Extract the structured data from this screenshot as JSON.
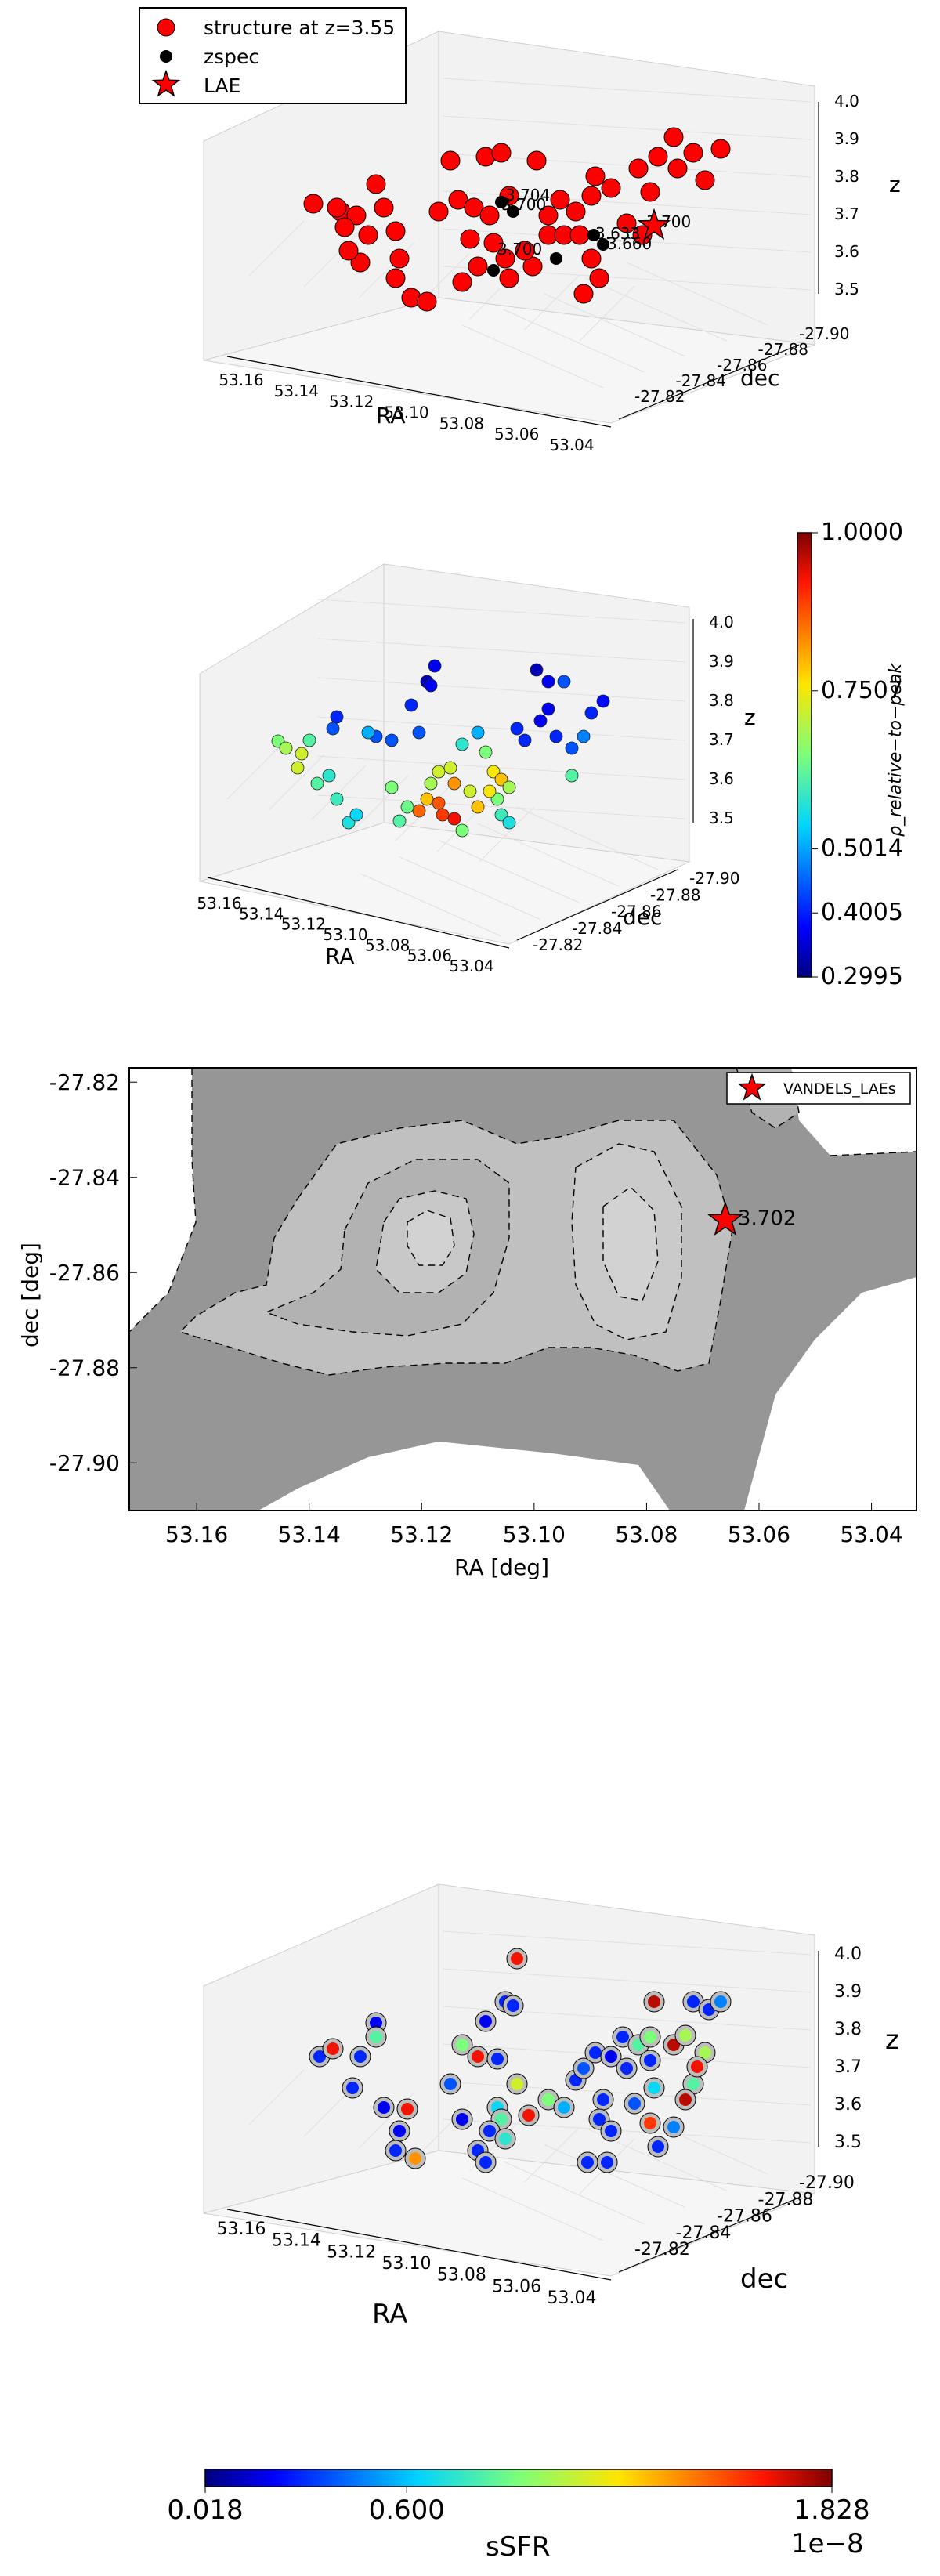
{
  "colors": {
    "red": "#ff0000",
    "black": "#000000",
    "pane_fill": "#f2f2f2",
    "contour_dark": "#969696",
    "contour_light": "#c0c0c0",
    "contour_mid": "#b2b2b2",
    "contour_inner": "#cacaca"
  },
  "chart_data": [
    {
      "id": "panel1",
      "type": "scatter",
      "projection": "3d",
      "title": "",
      "xlabel": "RA",
      "ylabel": "dec",
      "zlabel": "z",
      "x_ticks": [
        "53.16",
        "53.14",
        "53.12",
        "53.10",
        "53.08",
        "53.06",
        "53.04"
      ],
      "y_ticks": [
        "-27.82",
        "-27.84",
        "-27.86",
        "-27.88",
        "-27.90"
      ],
      "z_ticks": [
        "4.0",
        "3.9",
        "3.8",
        "3.7",
        "3.6",
        "3.5"
      ],
      "legend": {
        "placement": "top-left",
        "entries": [
          {
            "label": "structure at z=3.55",
            "marker": "circle",
            "color": "#ff0000"
          },
          {
            "label": "zspec",
            "marker": "dot",
            "color": "#000000"
          },
          {
            "label": "LAE",
            "marker": "star",
            "color": "#ff0000"
          }
        ]
      },
      "annotations": [
        "3.704",
        "3.700",
        "3.700",
        "3.633",
        "3.660",
        "3.700"
      ]
    },
    {
      "id": "panel2",
      "type": "scatter",
      "projection": "3d",
      "title": "",
      "xlabel": "RA",
      "ylabel": "dec",
      "zlabel": "z",
      "x_ticks": [
        "53.16",
        "53.14",
        "53.12",
        "53.10",
        "53.08",
        "53.06",
        "53.04"
      ],
      "y_ticks": [
        "-27.82",
        "-27.84",
        "-27.86",
        "-27.88",
        "-27.90"
      ],
      "z_ticks": [
        "4.0",
        "3.9",
        "3.8",
        "3.7",
        "3.6",
        "3.5"
      ],
      "colorbar": {
        "label": "ρ_relative−to−peak",
        "colormap": "jet",
        "tick_labels": [
          "1.0000",
          "0.7507",
          "0.5014",
          "0.4005",
          "0.2995"
        ],
        "tick_values": [
          1.0,
          0.7507,
          0.5014,
          0.4005,
          0.2995
        ],
        "range": [
          0.2995,
          1.0
        ]
      }
    },
    {
      "id": "panel3",
      "type": "contour",
      "title": "",
      "xlabel": "RA [deg]",
      "ylabel": "dec [deg]",
      "xlim": [
        53.172,
        53.032
      ],
      "ylim": [
        -27.91,
        -27.817
      ],
      "x_ticks": [
        "53.16",
        "53.14",
        "53.12",
        "53.10",
        "53.08",
        "53.06",
        "53.04"
      ],
      "y_ticks": [
        "-27.82",
        "-27.84",
        "-27.86",
        "-27.88",
        "-27.90"
      ],
      "x_tick_values": [
        53.16,
        53.14,
        53.12,
        53.1,
        53.08,
        53.06,
        53.04
      ],
      "y_tick_values": [
        -27.82,
        -27.84,
        -27.86,
        -27.88,
        -27.9
      ],
      "legend": {
        "placement": "top-right",
        "entries": [
          {
            "label": "VANDELS_LAEs",
            "marker": "star",
            "color": "#ff0000"
          }
        ]
      },
      "points": [
        {
          "ra": 53.066,
          "dec": -27.849,
          "label": "3.702"
        }
      ]
    },
    {
      "id": "panel4",
      "type": "scatter",
      "projection": "3d",
      "title": "",
      "xlabel": "RA",
      "ylabel": "dec",
      "zlabel": "z",
      "x_ticks": [
        "53.16",
        "53.14",
        "53.12",
        "53.10",
        "53.08",
        "53.06",
        "53.04"
      ],
      "y_ticks": [
        "-27.82",
        "-27.84",
        "-27.86",
        "-27.88",
        "-27.90"
      ],
      "z_ticks": [
        "4.0",
        "3.9",
        "3.8",
        "3.7",
        "3.6",
        "3.5"
      ]
    },
    {
      "id": "colorbar-ssfr",
      "type": "colorbar",
      "label": "sSFR",
      "colormap": "jet",
      "tick_labels": [
        "0.018",
        "0.600",
        "1.828"
      ],
      "tick_values": [
        0.018,
        0.6,
        1.828
      ],
      "range": [
        0.018,
        1.828
      ],
      "offset_text": "1e−8"
    }
  ]
}
